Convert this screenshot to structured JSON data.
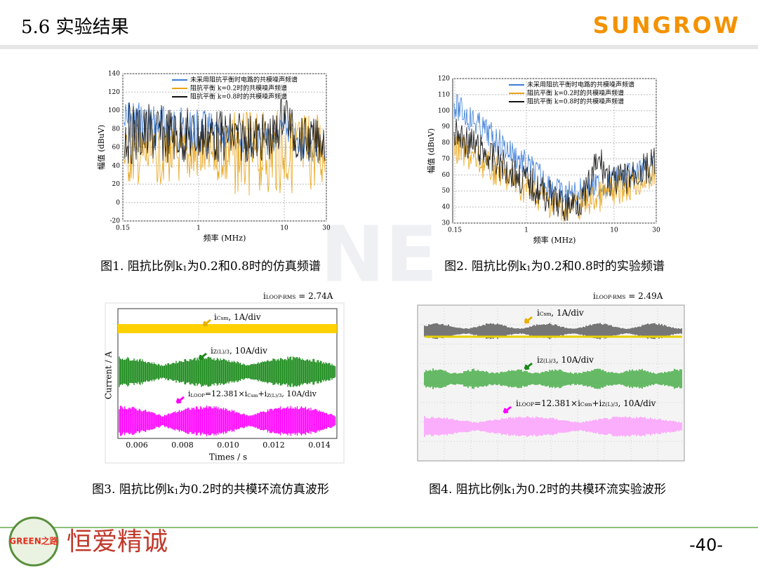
{
  "header": {
    "title": "5.6 实验结果",
    "brand": "SUNGROW"
  },
  "figures": [
    {
      "caption": [
        "图1. 阻抗比例k",
        "1",
        "为0.2和0.8时的仿真频谱"
      ],
      "y_label": "幅值 (dBuV)",
      "x_label": "频率 (MHz)",
      "yticks": [
        "140",
        "120",
        "100",
        "80",
        "60",
        "40",
        "20",
        "0",
        "-20"
      ],
      "xticks": [
        "0.15",
        "1",
        "10",
        "30"
      ],
      "legend": [
        "未采用阻抗平衡时电路的共模噪声频谱",
        "阻抗平衡 k=0.2时的共模噪声频谱",
        "阻抗平衡 k=0.8时的共模噪声频谱"
      ]
    },
    {
      "caption": [
        "图2. 阻抗比例k",
        "1",
        "为0.2和0.8时的实验频谱"
      ],
      "y_label": "幅值 (dBuV)",
      "x_label": "频率 (MHz)",
      "yticks": [
        "120",
        "110",
        "100",
        "90",
        "80",
        "70",
        "60",
        "50",
        "40",
        "30"
      ],
      "xticks": [
        "0.15",
        "1",
        "10",
        "30"
      ],
      "legend": [
        "未采用阻抗平衡时电路的共模噪声频谱",
        "阻抗平衡 k=0.2时的共模噪声频谱",
        "阻抗平衡 k=0.8时的共模噪声频谱"
      ]
    },
    {
      "caption": [
        "图3. 阻抗比例k",
        "1",
        "为0.2时的共模环流仿真波形"
      ],
      "rms": [
        "i",
        "LOOP-RMS",
        " = 2.74A"
      ],
      "y_label": "Current / A",
      "x_label": "Times / s",
      "xticks": [
        "0.006",
        "0.008",
        "0.010",
        "0.012",
        "0.014"
      ],
      "annotations": [
        [
          "i",
          "Csm",
          ", 1A/div"
        ],
        [
          "i",
          "Z(L)/3",
          ", 10A/div"
        ],
        [
          "i",
          "LOOP",
          "=12.381×i",
          "Csm",
          "+i",
          "Z(L)/3",
          ", 10A/div"
        ]
      ]
    },
    {
      "caption": [
        "图4. 阻抗比例k",
        "1",
        "为0.2时的共模环流实验波形"
      ],
      "rms": [
        "i",
        "LOOP-RMS",
        " = 2.49A"
      ],
      "annotations": [
        [
          "i",
          "Csm",
          ", 1A/div"
        ],
        [
          "i",
          "Z(L)/3",
          ", 10A/div"
        ],
        [
          "i",
          "LOOP",
          "=12.381×i",
          "Csm",
          "+i",
          "Z(L)/3",
          ", 10A/div"
        ]
      ]
    }
  ],
  "footer": {
    "motto": "恒爱精诚",
    "logo": "GREEN之路",
    "page": "-40-"
  }
}
